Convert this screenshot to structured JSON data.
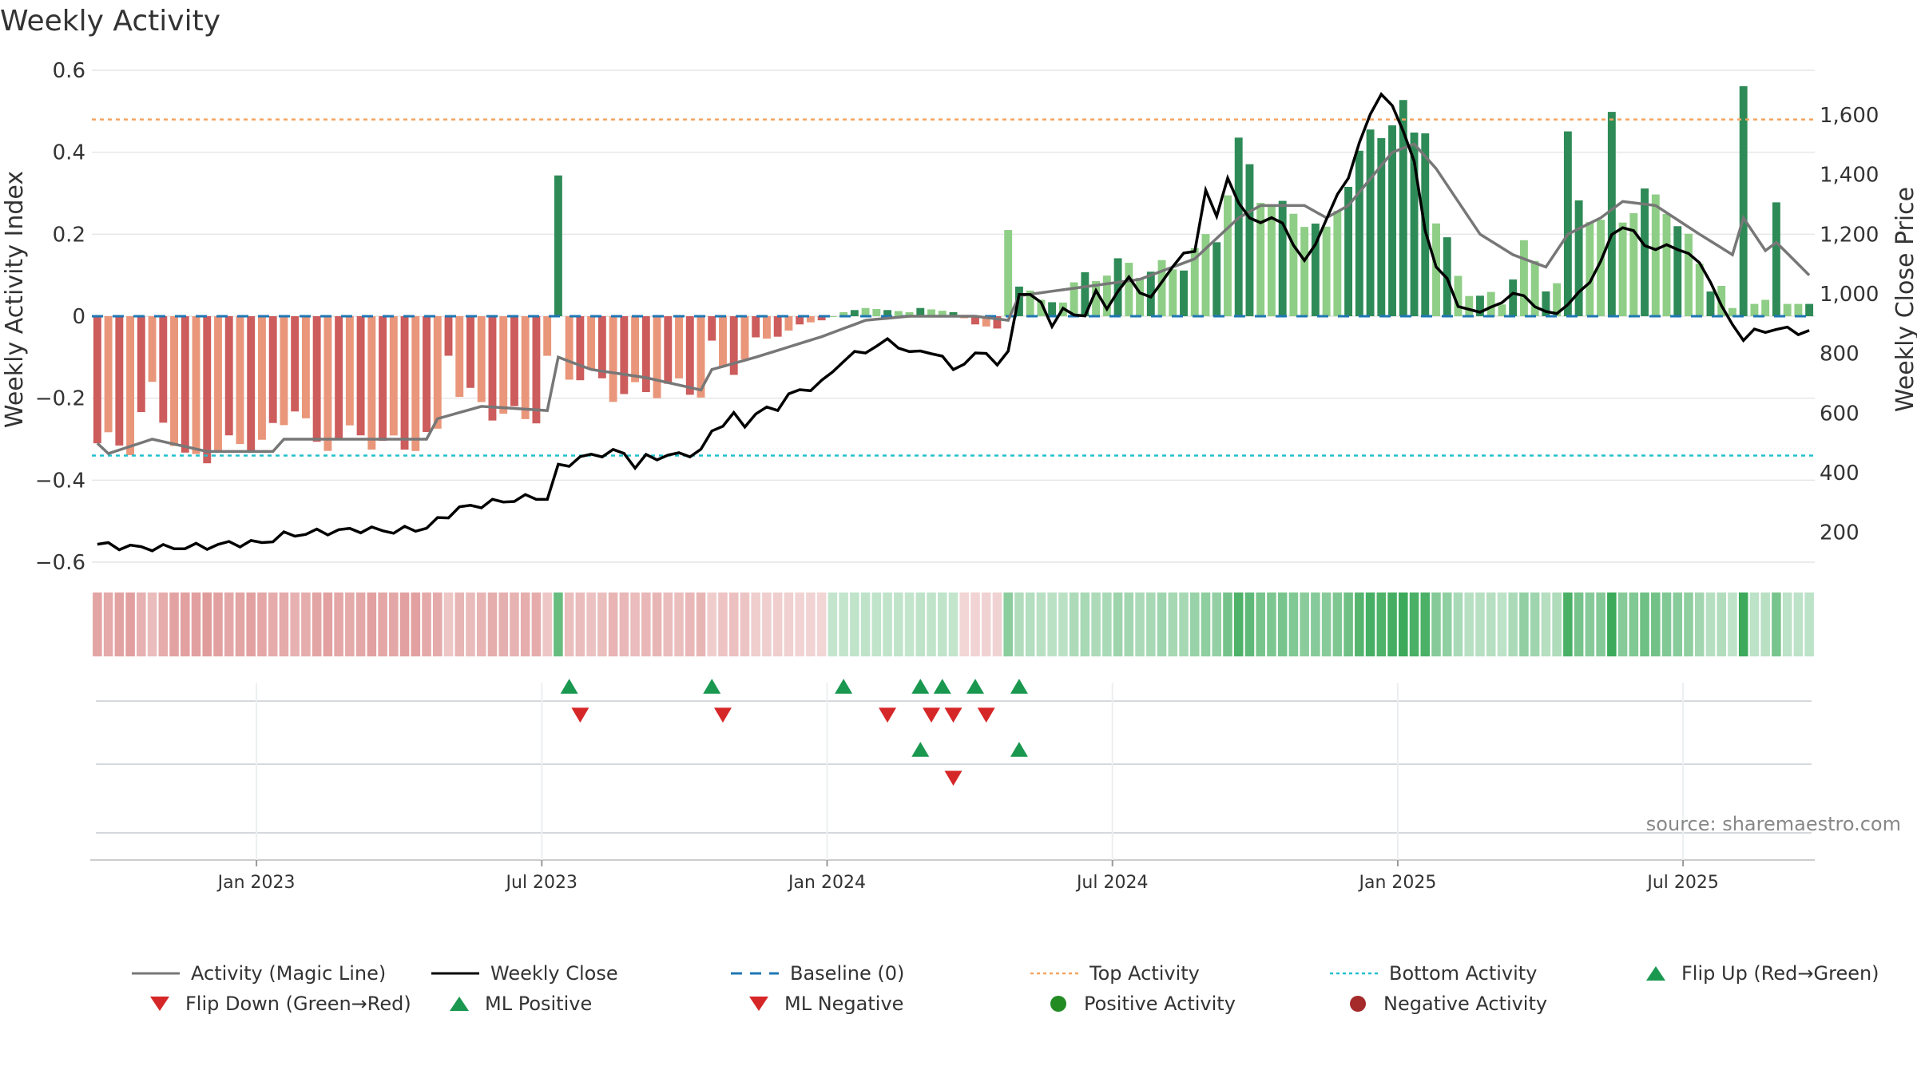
{
  "title": "Weekly Activity",
  "source": "source: sharemaestro.com",
  "colors": {
    "neg_dark": "#cd5c5c",
    "neg_light": "#e9967a",
    "pos_dark": "#2e8b57",
    "pos_light": "#8fce86",
    "magic": "#777777",
    "close": "#000000",
    "baseline": "#1f77b4",
    "top": "#f4a460",
    "bottom": "#20c0cc",
    "flip_up": "#1a9850",
    "flip_down": "#d62728"
  },
  "chart_data": {
    "type": "bar",
    "title": "Weekly Activity",
    "ylabel": "Weekly Activity Index",
    "y2label": "Weekly Close Price",
    "ylim": [
      -0.6,
      0.6
    ],
    "y2lim": [
      100,
      1750
    ],
    "y_ticks": [
      "0.6",
      "0.4",
      "0.2",
      "0",
      "−0.2",
      "−0.4",
      "−0.6"
    ],
    "y_tick_values": [
      0.6,
      0.4,
      0.2,
      0,
      -0.2,
      -0.4,
      -0.6
    ],
    "y2_ticks": [
      "1,600",
      "1,400",
      "1,200",
      "1,000",
      "800",
      "600",
      "400",
      "200"
    ],
    "y2_tick_values": [
      1600,
      1400,
      1200,
      1000,
      800,
      600,
      400,
      200
    ],
    "x_ticks": [
      "Jan 2023",
      "Jul 2023",
      "Jan 2024",
      "Jul 2024",
      "Jan 2025",
      "Jul 2025"
    ],
    "x_tick_weeks": [
      15,
      41,
      67,
      93,
      119,
      145
    ],
    "top_activity": 0.48,
    "bottom_activity": -0.34,
    "baseline": 0,
    "activity_keys": [
      [
        0,
        -0.31
      ],
      [
        3,
        -0.33
      ],
      [
        5,
        -0.18
      ],
      [
        8,
        -0.34
      ],
      [
        12,
        -0.33
      ],
      [
        15,
        -0.31
      ],
      [
        18,
        -0.2
      ],
      [
        20,
        -0.32
      ],
      [
        24,
        -0.3
      ],
      [
        27,
        -0.3
      ],
      [
        31,
        -0.3
      ],
      [
        32,
        -0.09
      ],
      [
        33,
        -0.2
      ],
      [
        36,
        -0.22
      ],
      [
        40,
        -0.24
      ],
      [
        41,
        -0.12
      ],
      [
        42,
        0.31
      ],
      [
        43,
        -0.15
      ],
      [
        46,
        -0.15
      ],
      [
        47,
        -0.17
      ],
      [
        52,
        -0.19
      ],
      [
        55,
        -0.18
      ],
      [
        56,
        -0.07
      ],
      [
        57,
        -0.12
      ],
      [
        62,
        -0.05
      ],
      [
        64,
        -0.02
      ],
      [
        66,
        -0.01
      ],
      [
        68,
        0.01
      ],
      [
        70,
        0.02
      ],
      [
        74,
        0.01
      ],
      [
        75,
        0.02
      ],
      [
        78,
        0.01
      ],
      [
        80,
        -0.02
      ],
      [
        82,
        -0.03
      ],
      [
        83,
        0.19
      ],
      [
        84,
        0.09
      ],
      [
        86,
        0.04
      ],
      [
        88,
        0.07
      ],
      [
        92,
        0.1
      ],
      [
        95,
        0.12
      ],
      [
        98,
        0.13
      ],
      [
        102,
        0.18
      ],
      [
        103,
        0.3
      ],
      [
        104,
        0.41
      ],
      [
        106,
        0.31
      ],
      [
        108,
        0.27
      ],
      [
        110,
        0.24
      ],
      [
        112,
        0.18
      ],
      [
        114,
        0.33
      ],
      [
        116,
        0.45
      ],
      [
        118,
        0.49
      ],
      [
        119,
        0.51
      ],
      [
        120,
        0.44
      ],
      [
        121,
        0.46
      ],
      [
        122,
        0.21
      ],
      [
        124,
        0.1
      ],
      [
        126,
        0.05
      ],
      [
        128,
        0.06
      ],
      [
        130,
        0.16
      ],
      [
        132,
        0.07
      ],
      [
        133,
        0.07
      ],
      [
        134,
        0.42
      ],
      [
        135,
        0.29
      ],
      [
        137,
        0.24
      ],
      [
        138,
        0.49
      ],
      [
        139,
        0.25
      ],
      [
        141,
        0.28
      ],
      [
        143,
        0.26
      ],
      [
        145,
        0.18
      ],
      [
        147,
        0.1
      ],
      [
        148,
        0.08
      ],
      [
        149,
        0.02
      ],
      [
        150,
        0.57
      ],
      [
        151,
        0.03
      ],
      [
        152,
        0.04
      ],
      [
        153,
        0.25
      ],
      [
        154,
        0.03
      ],
      [
        156,
        0.03
      ]
    ],
    "magic_keys": [
      [
        0,
        -0.31
      ],
      [
        1,
        -0.335
      ],
      [
        5,
        -0.3
      ],
      [
        10,
        -0.33
      ],
      [
        16,
        -0.33
      ],
      [
        17,
        -0.3
      ],
      [
        30,
        -0.3
      ],
      [
        31,
        -0.25
      ],
      [
        35,
        -0.22
      ],
      [
        41,
        -0.23
      ],
      [
        42,
        -0.1
      ],
      [
        45,
        -0.13
      ],
      [
        50,
        -0.15
      ],
      [
        55,
        -0.18
      ],
      [
        56,
        -0.13
      ],
      [
        60,
        -0.1
      ],
      [
        66,
        -0.05
      ],
      [
        70,
        -0.01
      ],
      [
        74,
        0.0
      ],
      [
        80,
        0.0
      ],
      [
        83,
        -0.01
      ],
      [
        84,
        0.05
      ],
      [
        95,
        0.09
      ],
      [
        100,
        0.14
      ],
      [
        104,
        0.24
      ],
      [
        106,
        0.27
      ],
      [
        110,
        0.27
      ],
      [
        112,
        0.24
      ],
      [
        114,
        0.27
      ],
      [
        118,
        0.4
      ],
      [
        120,
        0.42
      ],
      [
        122,
        0.36
      ],
      [
        126,
        0.2
      ],
      [
        129,
        0.15
      ],
      [
        132,
        0.12
      ],
      [
        134,
        0.2
      ],
      [
        137,
        0.24
      ],
      [
        139,
        0.28
      ],
      [
        142,
        0.27
      ],
      [
        146,
        0.2
      ],
      [
        149,
        0.15
      ],
      [
        150,
        0.24
      ],
      [
        152,
        0.16
      ],
      [
        153,
        0.18
      ],
      [
        156,
        0.1
      ]
    ],
    "close_keys": [
      [
        0,
        160
      ],
      [
        3,
        150
      ],
      [
        6,
        148
      ],
      [
        10,
        153
      ],
      [
        12,
        162
      ],
      [
        15,
        165
      ],
      [
        17,
        190
      ],
      [
        20,
        200
      ],
      [
        24,
        210
      ],
      [
        27,
        205
      ],
      [
        30,
        215
      ],
      [
        31,
        240
      ],
      [
        33,
        280
      ],
      [
        36,
        300
      ],
      [
        40,
        320
      ],
      [
        41,
        310
      ],
      [
        42,
        420
      ],
      [
        45,
        460
      ],
      [
        48,
        470
      ],
      [
        49,
        420
      ],
      [
        50,
        450
      ],
      [
        53,
        460
      ],
      [
        55,
        470
      ],
      [
        56,
        540
      ],
      [
        58,
        590
      ],
      [
        59,
        560
      ],
      [
        60,
        600
      ],
      [
        62,
        620
      ],
      [
        63,
        660
      ],
      [
        66,
        700
      ],
      [
        68,
        780
      ],
      [
        70,
        810
      ],
      [
        72,
        840
      ],
      [
        73,
        830
      ],
      [
        74,
        800
      ],
      [
        76,
        810
      ],
      [
        77,
        780
      ],
      [
        78,
        750
      ],
      [
        80,
        790
      ],
      [
        81,
        810
      ],
      [
        82,
        760
      ],
      [
        83,
        800
      ],
      [
        84,
        1010
      ],
      [
        86,
        970
      ],
      [
        87,
        900
      ],
      [
        88,
        940
      ],
      [
        90,
        930
      ],
      [
        91,
        1000
      ],
      [
        92,
        960
      ],
      [
        94,
        1050
      ],
      [
        96,
        980
      ],
      [
        98,
        1100
      ],
      [
        100,
        1150
      ],
      [
        101,
        1350
      ],
      [
        102,
        1250
      ],
      [
        103,
        1400
      ],
      [
        104,
        1300
      ],
      [
        105,
        1250
      ],
      [
        106,
        1250
      ],
      [
        108,
        1240
      ],
      [
        110,
        1100
      ],
      [
        112,
        1250
      ],
      [
        114,
        1400
      ],
      [
        116,
        1600
      ],
      [
        117,
        1680
      ],
      [
        118,
        1620
      ],
      [
        119,
        1550
      ],
      [
        120,
        1450
      ],
      [
        121,
        1200
      ],
      [
        122,
        1100
      ],
      [
        123,
        1050
      ],
      [
        124,
        950
      ],
      [
        125,
        960
      ],
      [
        126,
        930
      ],
      [
        128,
        980
      ],
      [
        130,
        1000
      ],
      [
        131,
        960
      ],
      [
        132,
        930
      ],
      [
        134,
        960
      ],
      [
        135,
        1000
      ],
      [
        137,
        1100
      ],
      [
        138,
        1200
      ],
      [
        139,
        1230
      ],
      [
        140,
        1200
      ],
      [
        141,
        1170
      ],
      [
        142,
        1150
      ],
      [
        144,
        1160
      ],
      [
        145,
        1130
      ],
      [
        146,
        1100
      ],
      [
        147,
        1050
      ],
      [
        148,
        950
      ],
      [
        149,
        900
      ],
      [
        150,
        850
      ],
      [
        151,
        870
      ],
      [
        152,
        880
      ],
      [
        154,
        880
      ],
      [
        156,
        870
      ]
    ],
    "flip_up_row1": [
      43,
      56,
      68,
      75,
      77,
      80,
      84
    ],
    "flip_down_row1": [
      44,
      57,
      72,
      76,
      78,
      81
    ],
    "ml_positive_row2": [
      75,
      84
    ],
    "ml_negative_row2": [
      78
    ]
  },
  "legend": [
    {
      "name": "magic-line",
      "label": "Activity (Magic Line)"
    },
    {
      "name": "weekly-close",
      "label": "Weekly Close"
    },
    {
      "name": "baseline",
      "label": "Baseline (0)"
    },
    {
      "name": "top-activity",
      "label": "Top Activity"
    },
    {
      "name": "bottom-activity",
      "label": "Bottom Activity"
    },
    {
      "name": "flip-up",
      "label": "Flip Up (Red→Green)"
    },
    {
      "name": "flip-down",
      "label": "Flip Down (Green→Red)"
    },
    {
      "name": "ml-positive",
      "label": "ML Positive"
    },
    {
      "name": "ml-negative",
      "label": "ML Negative"
    },
    {
      "name": "positive-activity",
      "label": "Positive Activity"
    },
    {
      "name": "negative-activity",
      "label": "Negative Activity"
    }
  ]
}
